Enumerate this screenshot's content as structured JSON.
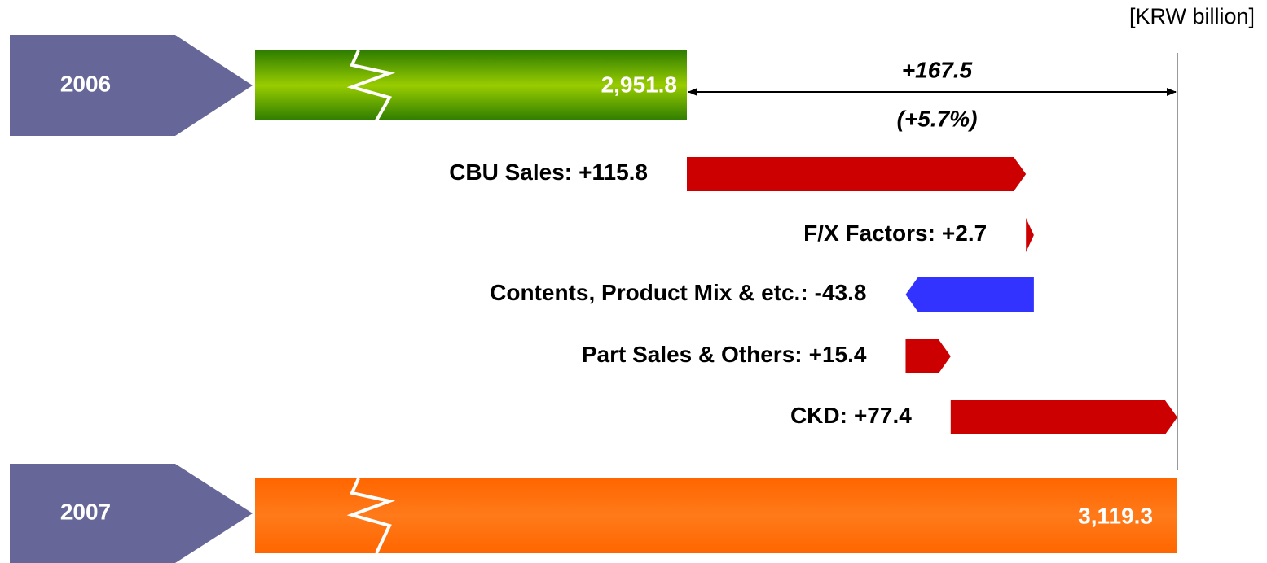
{
  "chart_data": {
    "type": "waterfall",
    "unit": "[KRW billion]",
    "start": {
      "name": "2006",
      "value": 2951.8,
      "value_label": "2,951.8",
      "color": "#99cc00"
    },
    "end": {
      "name": "2007",
      "value": 3119.3,
      "value_label": "3,119.3",
      "color": "#ff7a1a"
    },
    "categories": [
      "CBU Sales:",
      "F/X Factors:",
      "Contents, Product Mix & etc.:",
      "Part Sales & Others:",
      "CKD:"
    ],
    "values": [
      115.8,
      2.7,
      -43.8,
      15.4,
      77.4
    ],
    "value_labels": [
      "+115.8",
      "+2.7",
      "-43.8",
      "+15.4",
      "+77.4"
    ],
    "positive_color": "#cc0000",
    "negative_color": "#3333ff",
    "tab_color": "#666699",
    "change": {
      "value": 167.5,
      "label": "+167.5"
    },
    "change_pct": {
      "value": 5.7,
      "label": "(+5.7%)"
    }
  }
}
